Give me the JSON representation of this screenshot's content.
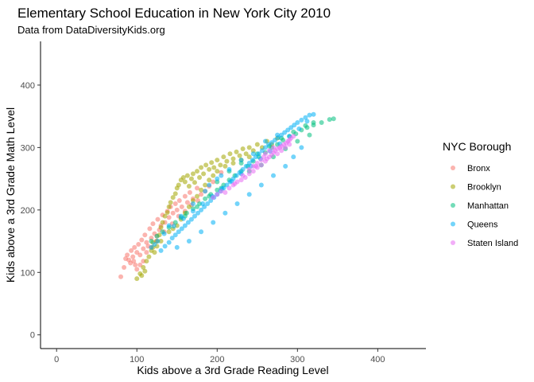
{
  "chart_data": {
    "type": "scatter",
    "title": "Elementary School Education in New York City 2010",
    "subtitle": "Data from DataDiversityKids.org",
    "xlabel": "Kids above a 3rd Grade Reading Level",
    "ylabel": "Kids above a 3rd Grade Math Level",
    "xlim": [
      -20,
      460
    ],
    "ylim": [
      -22,
      470
    ],
    "x_ticks": [
      0,
      100,
      200,
      300,
      400
    ],
    "y_ticks": [
      0,
      100,
      200,
      300,
      400
    ],
    "grid": false,
    "legend_title": "NYC Borough",
    "legend_position": "right",
    "point_alpha": 0.55,
    "series": [
      {
        "name": "Bronx",
        "color": "#F8766D",
        "points": [
          [
            80,
            93
          ],
          [
            84,
            108
          ],
          [
            86,
            122
          ],
          [
            88,
            128
          ],
          [
            90,
            120
          ],
          [
            92,
            115
          ],
          [
            93,
            135
          ],
          [
            95,
            125
          ],
          [
            97,
            140
          ],
          [
            98,
            112
          ],
          [
            100,
            132
          ],
          [
            102,
            145
          ],
          [
            104,
            128
          ],
          [
            106,
            152
          ],
          [
            108,
            138
          ],
          [
            110,
            160
          ],
          [
            112,
            148
          ],
          [
            114,
            142
          ],
          [
            116,
            170
          ],
          [
            118,
            155
          ],
          [
            120,
            178
          ],
          [
            122,
            162
          ],
          [
            124,
            150
          ],
          [
            126,
            185
          ],
          [
            128,
            168
          ],
          [
            130,
            175
          ],
          [
            132,
            192
          ],
          [
            135,
            180
          ],
          [
            138,
            198
          ],
          [
            140,
            188
          ],
          [
            142,
            205
          ],
          [
            145,
            195
          ],
          [
            148,
            210
          ],
          [
            150,
            200
          ],
          [
            153,
            215
          ],
          [
            156,
            205
          ],
          [
            160,
            222
          ],
          [
            163,
            212
          ],
          [
            166,
            228
          ],
          [
            170,
            218
          ],
          [
            175,
            235
          ],
          [
            180,
            225
          ],
          [
            108,
            118
          ],
          [
            112,
            132
          ],
          [
            118,
            140
          ],
          [
            125,
            158
          ],
          [
            134,
            165
          ],
          [
            144,
            178
          ],
          [
            152,
            190
          ],
          [
            160,
            198
          ],
          [
            168,
            208
          ],
          [
            176,
            215
          ],
          [
            185,
            230
          ],
          [
            195,
            245
          ],
          [
            205,
            260
          ],
          [
            190,
            238
          ],
          [
            100,
            105
          ],
          [
            96,
            118
          ],
          [
            104,
            112
          ]
        ]
      },
      {
        "name": "Brooklyn",
        "color": "#A3A500",
        "points": [
          [
            100,
            90
          ],
          [
            104,
            98
          ],
          [
            106,
            95
          ],
          [
            108,
            108
          ],
          [
            110,
            102
          ],
          [
            112,
            118
          ],
          [
            115,
            125
          ],
          [
            118,
            135
          ],
          [
            120,
            140
          ],
          [
            122,
            132
          ],
          [
            125,
            150
          ],
          [
            128,
            160
          ],
          [
            130,
            172
          ],
          [
            132,
            180
          ],
          [
            135,
            190
          ],
          [
            138,
            196
          ],
          [
            140,
            205
          ],
          [
            142,
            212
          ],
          [
            145,
            220
          ],
          [
            148,
            226
          ],
          [
            150,
            235
          ],
          [
            152,
            240
          ],
          [
            155,
            248
          ],
          [
            158,
            252
          ],
          [
            160,
            245
          ],
          [
            163,
            255
          ],
          [
            165,
            238
          ],
          [
            168,
            250
          ],
          [
            170,
            258
          ],
          [
            172,
            244
          ],
          [
            175,
            262
          ],
          [
            178,
            252
          ],
          [
            180,
            268
          ],
          [
            183,
            258
          ],
          [
            186,
            272
          ],
          [
            190,
            265
          ],
          [
            193,
            276
          ],
          [
            196,
            268
          ],
          [
            200,
            280
          ],
          [
            204,
            272
          ],
          [
            208,
            285
          ],
          [
            212,
            278
          ],
          [
            216,
            290
          ],
          [
            220,
            282
          ],
          [
            224,
            293
          ],
          [
            228,
            287
          ],
          [
            232,
            298
          ],
          [
            236,
            290
          ],
          [
            240,
            300
          ],
          [
            245,
            295
          ],
          [
            250,
            305
          ],
          [
            256,
            300
          ],
          [
            262,
            310
          ],
          [
            268,
            305
          ],
          [
            275,
            315
          ],
          [
            150,
            175
          ],
          [
            155,
            185
          ],
          [
            160,
            195
          ],
          [
            165,
            205
          ],
          [
            170,
            215
          ],
          [
            175,
            222
          ],
          [
            180,
            232
          ],
          [
            185,
            240
          ],
          [
            190,
            248
          ],
          [
            195,
            255
          ],
          [
            200,
            262
          ],
          [
            210,
            270
          ],
          [
            220,
            275
          ],
          [
            230,
            280
          ],
          [
            240,
            285
          ],
          [
            130,
            150
          ],
          [
            140,
            165
          ],
          [
            145,
            170
          ],
          [
            120,
            148
          ],
          [
            125,
            142
          ]
        ]
      },
      {
        "name": "Manhattan",
        "color": "#00BF7D",
        "points": [
          [
            118,
            150
          ],
          [
            125,
            158
          ],
          [
            132,
            165
          ],
          [
            140,
            172
          ],
          [
            148,
            180
          ],
          [
            155,
            188
          ],
          [
            162,
            195
          ],
          [
            170,
            202
          ],
          [
            178,
            210
          ],
          [
            185,
            218
          ],
          [
            192,
            225
          ],
          [
            200,
            232
          ],
          [
            208,
            240
          ],
          [
            215,
            248
          ],
          [
            222,
            255
          ],
          [
            230,
            262
          ],
          [
            238,
            270
          ],
          [
            245,
            278
          ],
          [
            252,
            285
          ],
          [
            260,
            292
          ],
          [
            268,
            300
          ],
          [
            275,
            305
          ],
          [
            282,
            312
          ],
          [
            290,
            318
          ],
          [
            298,
            322
          ],
          [
            305,
            328
          ],
          [
            312,
            332
          ],
          [
            320,
            336
          ],
          [
            330,
            340
          ],
          [
            340,
            345
          ],
          [
            345,
            346
          ],
          [
            200,
            245
          ],
          [
            215,
            262
          ],
          [
            230,
            275
          ],
          [
            250,
            290
          ],
          [
            265,
            302
          ],
          [
            280,
            315
          ],
          [
            295,
            325
          ],
          [
            310,
            335
          ],
          [
            320,
            340
          ],
          [
            160,
            190
          ],
          [
            175,
            205
          ],
          [
            190,
            222
          ],
          [
            205,
            235
          ],
          [
            240,
            262
          ],
          [
            255,
            272
          ],
          [
            270,
            285
          ],
          [
            285,
            298
          ],
          [
            300,
            310
          ],
          [
            315,
            320
          ]
        ]
      },
      {
        "name": "Queens",
        "color": "#00B0F6",
        "points": [
          [
            118,
            140
          ],
          [
            122,
            145
          ],
          [
            126,
            150
          ],
          [
            130,
            135
          ],
          [
            135,
            142
          ],
          [
            140,
            148
          ],
          [
            144,
            155
          ],
          [
            148,
            160
          ],
          [
            152,
            165
          ],
          [
            156,
            170
          ],
          [
            160,
            175
          ],
          [
            164,
            180
          ],
          [
            168,
            185
          ],
          [
            172,
            190
          ],
          [
            176,
            195
          ],
          [
            180,
            200
          ],
          [
            184,
            205
          ],
          [
            188,
            210
          ],
          [
            192,
            215
          ],
          [
            196,
            220
          ],
          [
            200,
            225
          ],
          [
            204,
            230
          ],
          [
            208,
            235
          ],
          [
            212,
            240
          ],
          [
            216,
            245
          ],
          [
            220,
            250
          ],
          [
            224,
            255
          ],
          [
            228,
            260
          ],
          [
            232,
            265
          ],
          [
            236,
            270
          ],
          [
            240,
            275
          ],
          [
            244,
            280
          ],
          [
            248,
            285
          ],
          [
            252,
            290
          ],
          [
            256,
            295
          ],
          [
            260,
            300
          ],
          [
            264,
            305
          ],
          [
            268,
            308
          ],
          [
            272,
            312
          ],
          [
            276,
            316
          ],
          [
            280,
            320
          ],
          [
            284,
            324
          ],
          [
            288,
            328
          ],
          [
            292,
            332
          ],
          [
            296,
            336
          ],
          [
            300,
            340
          ],
          [
            305,
            344
          ],
          [
            310,
            348
          ],
          [
            315,
            352
          ],
          [
            320,
            353
          ],
          [
            312,
            342
          ],
          [
            302,
            330
          ],
          [
            290,
            318
          ],
          [
            278,
            306
          ],
          [
            266,
            294
          ],
          [
            254,
            282
          ],
          [
            242,
            270
          ],
          [
            230,
            258
          ],
          [
            218,
            246
          ],
          [
            206,
            234
          ],
          [
            194,
            222
          ],
          [
            182,
            210
          ],
          [
            170,
            198
          ],
          [
            158,
            186
          ],
          [
            146,
            174
          ],
          [
            134,
            162
          ],
          [
            150,
            140
          ],
          [
            165,
            150
          ],
          [
            180,
            165
          ],
          [
            195,
            180
          ],
          [
            210,
            195
          ],
          [
            225,
            210
          ],
          [
            240,
            225
          ],
          [
            255,
            240
          ],
          [
            270,
            255
          ],
          [
            285,
            270
          ],
          [
            295,
            285
          ],
          [
            305,
            300
          ],
          [
            190,
            240
          ],
          [
            205,
            255
          ],
          [
            215,
            265
          ],
          [
            230,
            280
          ],
          [
            245,
            290
          ],
          [
            260,
            310
          ],
          [
            275,
            320
          ],
          [
            140,
            175
          ],
          [
            155,
            190
          ],
          [
            170,
            210
          ],
          [
            185,
            230
          ],
          [
            200,
            250
          ]
        ]
      },
      {
        "name": "Staten Island",
        "color": "#E76BF3",
        "points": [
          [
            195,
            220
          ],
          [
            200,
            225
          ],
          [
            205,
            230
          ],
          [
            210,
            228
          ],
          [
            215,
            235
          ],
          [
            220,
            240
          ],
          [
            225,
            245
          ],
          [
            230,
            248
          ],
          [
            235,
            252
          ],
          [
            240,
            258
          ],
          [
            245,
            262
          ],
          [
            250,
            268
          ],
          [
            255,
            272
          ],
          [
            260,
            278
          ],
          [
            262,
            282
          ],
          [
            265,
            285
          ],
          [
            268,
            288
          ],
          [
            270,
            292
          ],
          [
            272,
            295
          ],
          [
            275,
            298
          ],
          [
            278,
            300
          ],
          [
            280,
            302
          ],
          [
            283,
            305
          ],
          [
            286,
            307
          ],
          [
            288,
            310
          ],
          [
            290,
            312
          ],
          [
            292,
            315
          ],
          [
            295,
            318
          ],
          [
            255,
            280
          ],
          [
            260,
            290
          ],
          [
            265,
            295
          ],
          [
            270,
            300
          ],
          [
            250,
            275
          ],
          [
            245,
            270
          ],
          [
            240,
            265
          ],
          [
            285,
            300
          ],
          [
            290,
            305
          ],
          [
            275,
            290
          ],
          [
            280,
            295
          ],
          [
            222,
            242
          ],
          [
            232,
            255
          ],
          [
            248,
            270
          ],
          [
            258,
            285
          ]
        ]
      }
    ]
  }
}
